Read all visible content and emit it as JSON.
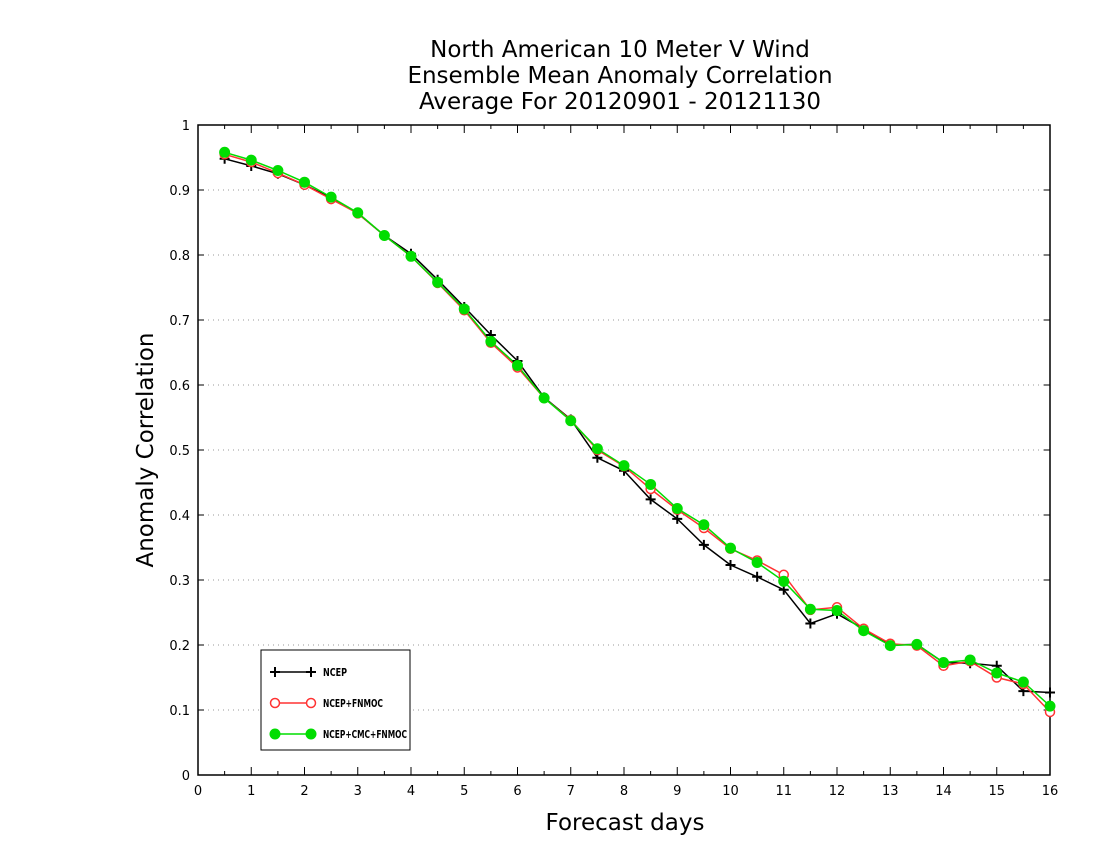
{
  "chart_data": {
    "type": "line",
    "title": [
      "North American 10 Meter V Wind",
      "Ensemble Mean Anomaly Correlation",
      "Average For 20120901 - 20121130"
    ],
    "xlabel": "Forecast days",
    "ylabel": "Anomaly Correlation",
    "xlim": [
      0,
      16
    ],
    "ylim": [
      0,
      1
    ],
    "x_ticks": [
      0,
      1,
      2,
      3,
      4,
      5,
      6,
      7,
      8,
      9,
      10,
      11,
      12,
      13,
      14,
      15,
      16
    ],
    "y_ticks": [
      0,
      0.1,
      0.2,
      0.3,
      0.4,
      0.5,
      0.6,
      0.7,
      0.8,
      0.9,
      1
    ],
    "y_tick_labels": [
      "0",
      "0.1",
      "0.2",
      "0.3",
      "0.4",
      "0.5",
      "0.6",
      "0.7",
      "0.8",
      "0.9",
      "1"
    ],
    "grid": "horizontal dotted",
    "legend_position": "bottom-left",
    "x": [
      0.5,
      1,
      1.5,
      2,
      2.5,
      3,
      3.5,
      4,
      4.5,
      5,
      5.5,
      6,
      6.5,
      7,
      7.5,
      8,
      8.5,
      9,
      9.5,
      10,
      10.5,
      11,
      11.5,
      12,
      12.5,
      13,
      13.5,
      14,
      14.5,
      15,
      15.5,
      16
    ],
    "series": [
      {
        "name": "NCEP",
        "color": "#000000",
        "marker": "plus",
        "values": [
          0.948,
          0.937,
          0.925,
          0.908,
          0.888,
          0.864,
          0.83,
          0.802,
          0.762,
          0.72,
          0.677,
          0.637,
          0.581,
          0.547,
          0.488,
          0.468,
          0.424,
          0.394,
          0.354,
          0.323,
          0.305,
          0.285,
          0.233,
          0.248,
          0.225,
          0.2,
          0.201,
          0.173,
          0.172,
          0.168,
          0.129,
          0.127
        ]
      },
      {
        "name": "NCEP+FNMOC",
        "color": "#ff3333",
        "marker": "open-circle",
        "values": [
          0.955,
          0.943,
          0.926,
          0.908,
          0.886,
          0.864,
          0.83,
          0.798,
          0.757,
          0.715,
          0.665,
          0.627,
          0.58,
          0.546,
          0.5,
          0.475,
          0.44,
          0.408,
          0.38,
          0.348,
          0.33,
          0.308,
          0.254,
          0.258,
          0.225,
          0.202,
          0.199,
          0.168,
          0.175,
          0.15,
          0.14,
          0.097
        ]
      },
      {
        "name": "NCEP+CMC+FNMOC",
        "color": "#00dd00",
        "marker": "filled-circle",
        "values": [
          0.958,
          0.946,
          0.93,
          0.912,
          0.889,
          0.865,
          0.83,
          0.798,
          0.758,
          0.717,
          0.667,
          0.63,
          0.58,
          0.545,
          0.502,
          0.476,
          0.447,
          0.41,
          0.385,
          0.349,
          0.327,
          0.298,
          0.255,
          0.253,
          0.222,
          0.199,
          0.201,
          0.173,
          0.177,
          0.157,
          0.143,
          0.106
        ]
      }
    ]
  }
}
